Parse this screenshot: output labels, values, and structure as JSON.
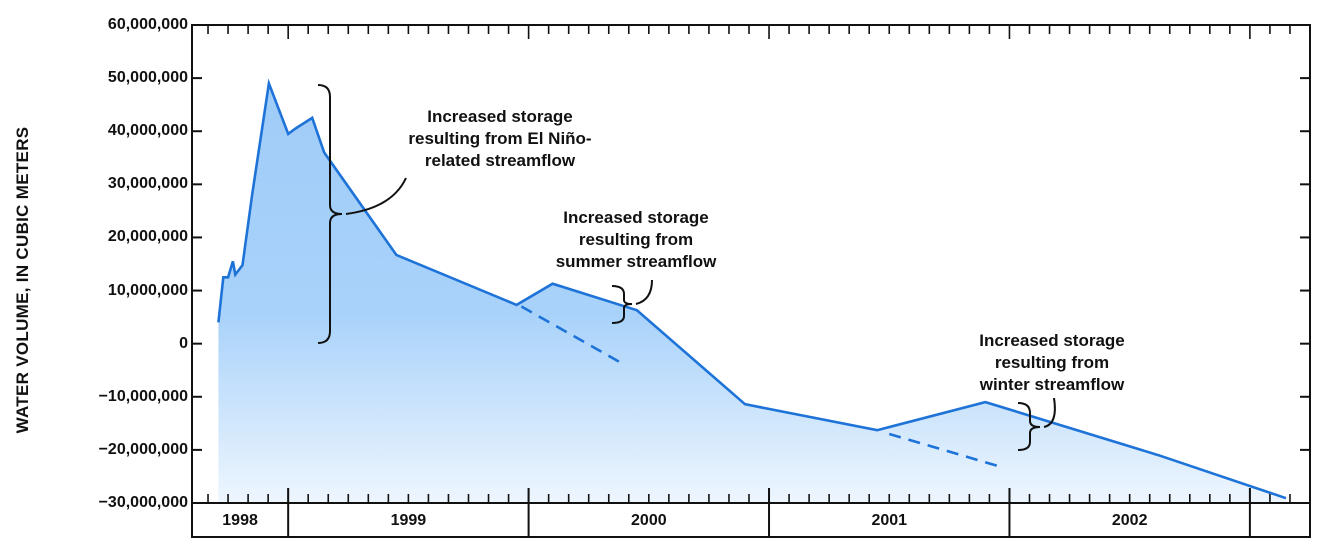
{
  "chart_data": {
    "type": "area",
    "title": "",
    "xlabel": "",
    "ylabel": "WATER VOLUME, IN CUBIC METERS",
    "ylim": [
      -30000000,
      60000000
    ],
    "y_ticks": [
      "60,000,000",
      "50,000,000",
      "40,000,000",
      "30,000,000",
      "20,000,000",
      "10,000,000",
      "0",
      "−10,000,000",
      "−20,000,000",
      "−30,000,000"
    ],
    "y_tick_values": [
      60000000,
      50000000,
      40000000,
      30000000,
      20000000,
      10000000,
      0,
      -10000000,
      -20000000,
      -30000000
    ],
    "xlim": [
      1997.6,
      2002.25
    ],
    "x_years": [
      "1998",
      "1999",
      "2000",
      "2001",
      "2002"
    ],
    "grid": false,
    "colors": {
      "line": "#1e73d8",
      "fill_top": "#9fccf8",
      "fill_bottom": "#eef6fe"
    },
    "series": [
      {
        "x": [
          1997.71,
          1997.73,
          1997.75,
          1997.77,
          1997.78,
          1997.81,
          1997.85,
          1997.92,
          1998.0,
          1998.03,
          1998.1,
          1998.15,
          1998.45,
          1998.95,
          1999.1,
          1999.45,
          1999.9,
          2000.45,
          2000.9,
          2001.62,
          2002.15
        ],
        "y": [
          4000000,
          12500000,
          12500000,
          15500000,
          13000000,
          14800000,
          28000000,
          49000000,
          39500000,
          40500000,
          42500000,
          36000000,
          16700000,
          7300000,
          11300000,
          6300000,
          -11400000,
          -16300000,
          -11000000,
          -21000000,
          -29100000
        ]
      }
    ],
    "trend_lines": [
      {
        "x": [
          1998.97,
          1999.4
        ],
        "y": [
          7000000,
          -4000000
        ]
      },
      {
        "x": [
          2000.5,
          2000.95
        ],
        "y": [
          -17000000,
          -23000000
        ]
      }
    ],
    "annotations": [
      {
        "lines": [
          "Increased storage",
          "resulting from El Niño-",
          "related streamflow"
        ]
      },
      {
        "lines": [
          "Increased storage",
          "resulting from",
          "summer streamflow"
        ]
      },
      {
        "lines": [
          "Increased storage",
          "resulting from",
          "winter streamflow"
        ]
      }
    ]
  }
}
